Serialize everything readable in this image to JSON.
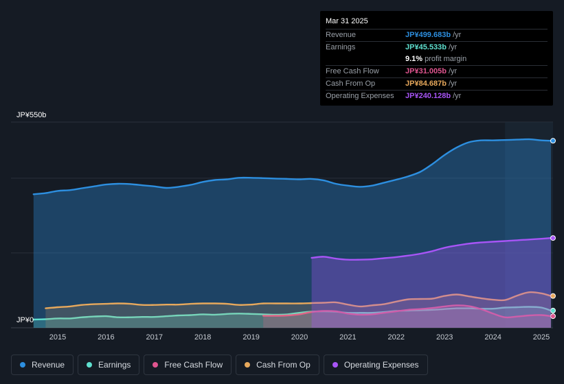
{
  "chart_data": {
    "type": "area",
    "title": "",
    "xlabel": "",
    "ylabel": "",
    "currency_unit": "JP¥ billions",
    "ylim": [
      0,
      550
    ],
    "y_tick_labels": [
      "JP¥550b",
      "JP¥0"
    ],
    "x_tick_labels": [
      "2015",
      "2016",
      "2017",
      "2018",
      "2019",
      "2020",
      "2021",
      "2022",
      "2023",
      "2024",
      "2025"
    ],
    "series": [
      {
        "name": "Revenue",
        "color": "#2d8fe0",
        "points": [
          [
            2014.5,
            357
          ],
          [
            2014.75,
            360
          ],
          [
            2015.0,
            366
          ],
          [
            2015.25,
            368
          ],
          [
            2015.5,
            373
          ],
          [
            2015.75,
            378
          ],
          [
            2016.0,
            383
          ],
          [
            2016.25,
            385
          ],
          [
            2016.5,
            384
          ],
          [
            2016.75,
            381
          ],
          [
            2017.0,
            378
          ],
          [
            2017.25,
            374
          ],
          [
            2017.5,
            377
          ],
          [
            2017.75,
            382
          ],
          [
            2018.0,
            390
          ],
          [
            2018.25,
            395
          ],
          [
            2018.5,
            397
          ],
          [
            2018.75,
            401
          ],
          [
            2019.0,
            401
          ],
          [
            2019.25,
            400
          ],
          [
            2019.5,
            399
          ],
          [
            2019.75,
            398
          ],
          [
            2020.0,
            397
          ],
          [
            2020.25,
            398
          ],
          [
            2020.5,
            394
          ],
          [
            2020.75,
            385
          ],
          [
            2021.0,
            380
          ],
          [
            2021.25,
            377
          ],
          [
            2021.5,
            380
          ],
          [
            2021.75,
            388
          ],
          [
            2022.0,
            396
          ],
          [
            2022.25,
            405
          ],
          [
            2022.5,
            417
          ],
          [
            2022.75,
            438
          ],
          [
            2023.0,
            462
          ],
          [
            2023.25,
            482
          ],
          [
            2023.5,
            496
          ],
          [
            2023.75,
            501
          ],
          [
            2024.0,
            501
          ],
          [
            2024.25,
            502
          ],
          [
            2024.5,
            503
          ],
          [
            2024.75,
            504
          ],
          [
            2025.0,
            501
          ],
          [
            2025.2,
            500
          ]
        ]
      },
      {
        "name": "Earnings",
        "color": "#5fe0cf",
        "points": [
          [
            2014.5,
            22
          ],
          [
            2014.75,
            23
          ],
          [
            2015.0,
            25
          ],
          [
            2015.25,
            25
          ],
          [
            2015.5,
            28
          ],
          [
            2015.75,
            30
          ],
          [
            2016.0,
            31
          ],
          [
            2016.25,
            28
          ],
          [
            2016.5,
            28
          ],
          [
            2016.75,
            29
          ],
          [
            2017.0,
            29
          ],
          [
            2017.25,
            31
          ],
          [
            2017.5,
            33
          ],
          [
            2017.75,
            34
          ],
          [
            2018.0,
            36
          ],
          [
            2018.25,
            35
          ],
          [
            2018.5,
            37
          ],
          [
            2018.75,
            38
          ],
          [
            2019.0,
            37
          ],
          [
            2019.25,
            36
          ],
          [
            2019.5,
            35
          ],
          [
            2019.75,
            36
          ],
          [
            2020.0,
            40
          ],
          [
            2020.25,
            43
          ],
          [
            2020.5,
            44
          ],
          [
            2020.75,
            43
          ],
          [
            2021.0,
            40
          ],
          [
            2021.25,
            40
          ],
          [
            2021.5,
            40
          ],
          [
            2021.75,
            42
          ],
          [
            2022.0,
            45
          ],
          [
            2022.25,
            46
          ],
          [
            2022.5,
            47
          ],
          [
            2022.75,
            48
          ],
          [
            2023.0,
            50
          ],
          [
            2023.25,
            52
          ],
          [
            2023.5,
            52
          ],
          [
            2023.75,
            51
          ],
          [
            2024.0,
            51
          ],
          [
            2024.25,
            54
          ],
          [
            2024.5,
            55
          ],
          [
            2024.75,
            56
          ],
          [
            2025.0,
            54
          ],
          [
            2025.2,
            46
          ]
        ]
      },
      {
        "name": "Free Cash Flow",
        "color": "#e0558f",
        "points": [
          [
            2019.25,
            32
          ],
          [
            2019.5,
            32
          ],
          [
            2019.75,
            33
          ],
          [
            2020.0,
            36
          ],
          [
            2020.25,
            42
          ],
          [
            2020.5,
            45
          ],
          [
            2020.75,
            44
          ],
          [
            2021.0,
            38
          ],
          [
            2021.25,
            35
          ],
          [
            2021.5,
            36
          ],
          [
            2021.75,
            40
          ],
          [
            2022.0,
            44
          ],
          [
            2022.25,
            48
          ],
          [
            2022.5,
            50
          ],
          [
            2022.75,
            53
          ],
          [
            2023.0,
            57
          ],
          [
            2023.25,
            60
          ],
          [
            2023.5,
            58
          ],
          [
            2023.75,
            50
          ],
          [
            2024.0,
            38
          ],
          [
            2024.25,
            28
          ],
          [
            2024.5,
            30
          ],
          [
            2024.75,
            33
          ],
          [
            2025.0,
            34
          ],
          [
            2025.2,
            31
          ]
        ]
      },
      {
        "name": "Cash From Op",
        "color": "#e8a95c",
        "points": [
          [
            2014.75,
            52
          ],
          [
            2015.0,
            55
          ],
          [
            2015.25,
            57
          ],
          [
            2015.5,
            61
          ],
          [
            2015.75,
            63
          ],
          [
            2016.0,
            64
          ],
          [
            2016.25,
            65
          ],
          [
            2016.5,
            64
          ],
          [
            2016.75,
            61
          ],
          [
            2017.0,
            61
          ],
          [
            2017.25,
            62
          ],
          [
            2017.5,
            62
          ],
          [
            2017.75,
            64
          ],
          [
            2018.0,
            65
          ],
          [
            2018.25,
            65
          ],
          [
            2018.5,
            64
          ],
          [
            2018.75,
            61
          ],
          [
            2019.0,
            62
          ],
          [
            2019.25,
            65
          ],
          [
            2019.5,
            65
          ],
          [
            2019.75,
            65
          ],
          [
            2020.0,
            65
          ],
          [
            2020.25,
            66
          ],
          [
            2020.5,
            67
          ],
          [
            2020.75,
            68
          ],
          [
            2021.0,
            62
          ],
          [
            2021.25,
            57
          ],
          [
            2021.5,
            60
          ],
          [
            2021.75,
            63
          ],
          [
            2022.0,
            70
          ],
          [
            2022.25,
            76
          ],
          [
            2022.5,
            77
          ],
          [
            2022.75,
            78
          ],
          [
            2023.0,
            85
          ],
          [
            2023.25,
            89
          ],
          [
            2023.5,
            84
          ],
          [
            2023.75,
            79
          ],
          [
            2024.0,
            75
          ],
          [
            2024.25,
            74
          ],
          [
            2024.5,
            86
          ],
          [
            2024.75,
            95
          ],
          [
            2025.0,
            92
          ],
          [
            2025.2,
            85
          ]
        ]
      },
      {
        "name": "Operating Expenses",
        "color": "#a855f7",
        "points": [
          [
            2020.25,
            187
          ],
          [
            2020.5,
            190
          ],
          [
            2020.75,
            185
          ],
          [
            2021.0,
            182
          ],
          [
            2021.25,
            182
          ],
          [
            2021.5,
            183
          ],
          [
            2021.75,
            186
          ],
          [
            2022.0,
            189
          ],
          [
            2022.25,
            193
          ],
          [
            2022.5,
            198
          ],
          [
            2022.75,
            205
          ],
          [
            2023.0,
            214
          ],
          [
            2023.25,
            220
          ],
          [
            2023.5,
            225
          ],
          [
            2023.75,
            228
          ],
          [
            2024.0,
            230
          ],
          [
            2024.25,
            232
          ],
          [
            2024.5,
            234
          ],
          [
            2024.75,
            236
          ],
          [
            2025.0,
            238
          ],
          [
            2025.2,
            240
          ]
        ]
      }
    ],
    "tooltip": {
      "date": "Mar 31 2025",
      "rows": [
        {
          "label": "Revenue",
          "value": "JP¥499.683b",
          "unit": "/yr",
          "color": "#2d8fe0"
        },
        {
          "label": "Earnings",
          "value": "JP¥45.533b",
          "unit": "/yr",
          "color": "#5fe0cf"
        },
        {
          "label": "",
          "value": "9.1%",
          "unit": "profit margin",
          "color": "#ffffff"
        },
        {
          "label": "Free Cash Flow",
          "value": "JP¥31.005b",
          "unit": "/yr",
          "color": "#e0558f"
        },
        {
          "label": "Cash From Op",
          "value": "JP¥84.687b",
          "unit": "/yr",
          "color": "#e8a95c"
        },
        {
          "label": "Operating Expenses",
          "value": "JP¥240.128b",
          "unit": "/yr",
          "color": "#a855f7"
        }
      ]
    },
    "legend": [
      {
        "label": "Revenue",
        "color": "#2d8fe0"
      },
      {
        "label": "Earnings",
        "color": "#5fe0cf"
      },
      {
        "label": "Free Cash Flow",
        "color": "#e0558f"
      },
      {
        "label": "Cash From Op",
        "color": "#e8a95c"
      },
      {
        "label": "Operating Expenses",
        "color": "#a855f7"
      }
    ]
  }
}
